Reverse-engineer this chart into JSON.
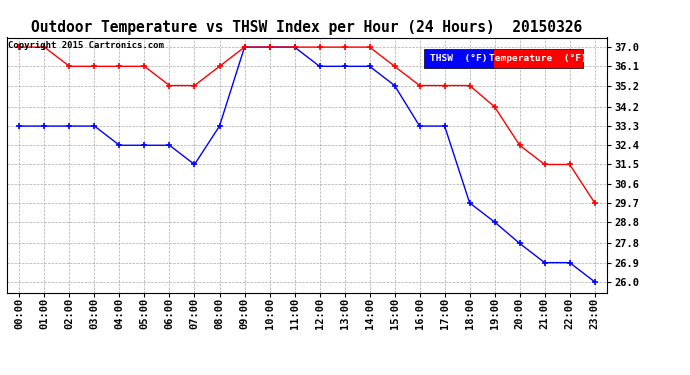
{
  "title": "Outdoor Temperature vs THSW Index per Hour (24 Hours)  20150326",
  "copyright": "Copyright 2015 Cartronics.com",
  "hours": [
    "00:00",
    "01:00",
    "02:00",
    "03:00",
    "04:00",
    "05:00",
    "06:00",
    "07:00",
    "08:00",
    "09:00",
    "10:00",
    "11:00",
    "12:00",
    "13:00",
    "14:00",
    "15:00",
    "16:00",
    "17:00",
    "18:00",
    "19:00",
    "20:00",
    "21:00",
    "22:00",
    "23:00"
  ],
  "thsw": [
    33.3,
    33.3,
    33.3,
    33.3,
    32.4,
    32.4,
    32.4,
    31.5,
    33.3,
    37.0,
    37.0,
    37.0,
    36.1,
    36.1,
    36.1,
    35.2,
    33.3,
    33.3,
    29.7,
    28.8,
    27.8,
    26.9,
    26.9,
    26.0
  ],
  "temperature": [
    37.0,
    37.0,
    36.1,
    36.1,
    36.1,
    36.1,
    35.2,
    35.2,
    36.1,
    37.0,
    37.0,
    37.0,
    37.0,
    37.0,
    37.0,
    36.1,
    35.2,
    35.2,
    35.2,
    34.2,
    32.4,
    31.5,
    31.5,
    29.7
  ],
  "ylim_min": 25.5,
  "ylim_max": 37.45,
  "yticks": [
    26.0,
    26.9,
    27.8,
    28.8,
    29.7,
    30.6,
    31.5,
    32.4,
    33.3,
    34.2,
    35.2,
    36.1,
    37.0
  ],
  "thsw_color": "#0000ff",
  "temp_color": "#ff0000",
  "bg_color": "#ffffff",
  "grid_color": "#aaaaaa",
  "title_fontsize": 10.5,
  "tick_fontsize": 7.5,
  "copyright_fontsize": 6.5,
  "legend_thsw_bg": "#0000ff",
  "legend_temp_bg": "#ff0000"
}
